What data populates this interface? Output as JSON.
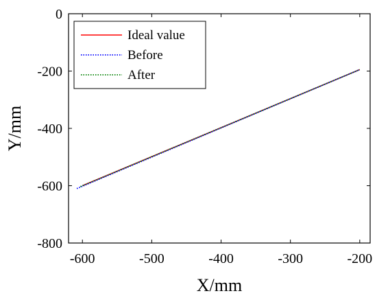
{
  "chart_data": {
    "type": "line",
    "xlabel": "X/mm",
    "ylabel": "Y/mm",
    "xlim": [
      -620,
      -185
    ],
    "ylim": [
      -800,
      0
    ],
    "xticks": [
      -600,
      -500,
      -400,
      -300,
      -200
    ],
    "yticks": [
      0,
      -200,
      -400,
      -600,
      -800
    ],
    "grid": false,
    "legend_position": "top-left",
    "series": [
      {
        "name": "Ideal value",
        "color": "#ff0000",
        "style": "solid",
        "x": [
          -600,
          -200
        ],
        "y": [
          -600,
          -195
        ]
      },
      {
        "name": "Before",
        "color": "#0000ff",
        "style": "dotted",
        "x": [
          -608,
          -200
        ],
        "y": [
          -610,
          -195
        ]
      },
      {
        "name": "After",
        "color": "#008000",
        "style": "dotted",
        "x": [
          -603,
          -200
        ],
        "y": [
          -603,
          -195
        ]
      }
    ]
  }
}
